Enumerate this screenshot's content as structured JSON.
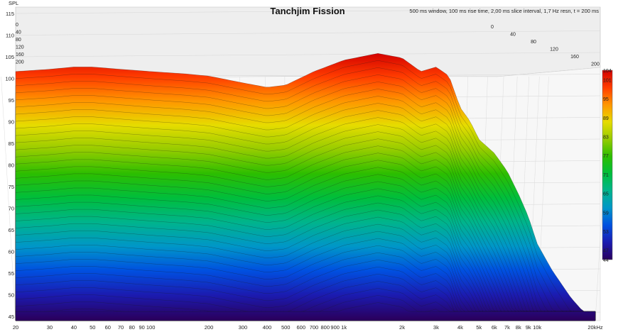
{
  "chart_data": {
    "type": "area",
    "title": "Tanchjim Fission",
    "subtitle": "500 ms window, 100 ms rise time, 2,00 ms slice interval, 1,7 Hz resn, t = 200 ms",
    "ylabel": "SPL",
    "y_ticks": [
      "115",
      "110",
      "105",
      "100",
      "95",
      "90",
      "85",
      "80",
      "75",
      "70",
      "65",
      "60",
      "55",
      "50",
      "45"
    ],
    "ylim": [
      45,
      115
    ],
    "x_ticks": [
      "20",
      "30",
      "40",
      "50",
      "60",
      "70",
      "80",
      "90",
      "100",
      "200",
      "300",
      "400",
      "500",
      "600",
      "700",
      "800",
      "900",
      "1k",
      "2k",
      "3k",
      "4k",
      "5k",
      "6k",
      "7k",
      "8k",
      "9k",
      "10k",
      "20kHz"
    ],
    "xlim": [
      20,
      20000
    ],
    "x_scale": "log",
    "time_ticks": [
      "0",
      "40",
      "80",
      "120",
      "160",
      "200"
    ],
    "time_unit": "ms",
    "colorbar": {
      "ticks": [
        "104",
        "101",
        "95",
        "89",
        "83",
        "77",
        "71",
        "65",
        "59",
        "53",
        "47",
        "44"
      ],
      "min": 44,
      "max": 104,
      "colors": [
        "#2a005e",
        "#1b1bb0",
        "#0050e0",
        "#0096c8",
        "#00b48c",
        "#00be3c",
        "#2cbe00",
        "#96cc00",
        "#e6dc00",
        "#ff9600",
        "#ff3c00",
        "#d20000"
      ]
    },
    "series": [
      {
        "x": [
          20,
          30,
          40,
          50,
          70,
          100,
          150,
          200,
          300,
          400,
          500,
          700,
          1000,
          1500,
          2000,
          2500,
          3000,
          3500,
          4000,
          4500,
          5000,
          6000,
          7000,
          8000,
          9000,
          10000,
          12000,
          15000,
          20000
        ],
        "values": [
          100,
          100.5,
          101,
          101,
          100.5,
          100,
          99.5,
          99,
          97.5,
          96.5,
          97,
          100,
          102.5,
          104,
          103,
          100,
          101,
          99,
          92,
          89,
          85,
          82,
          78,
          73,
          68,
          62,
          56,
          50,
          44
        ]
      }
    ],
    "grid": true
  }
}
